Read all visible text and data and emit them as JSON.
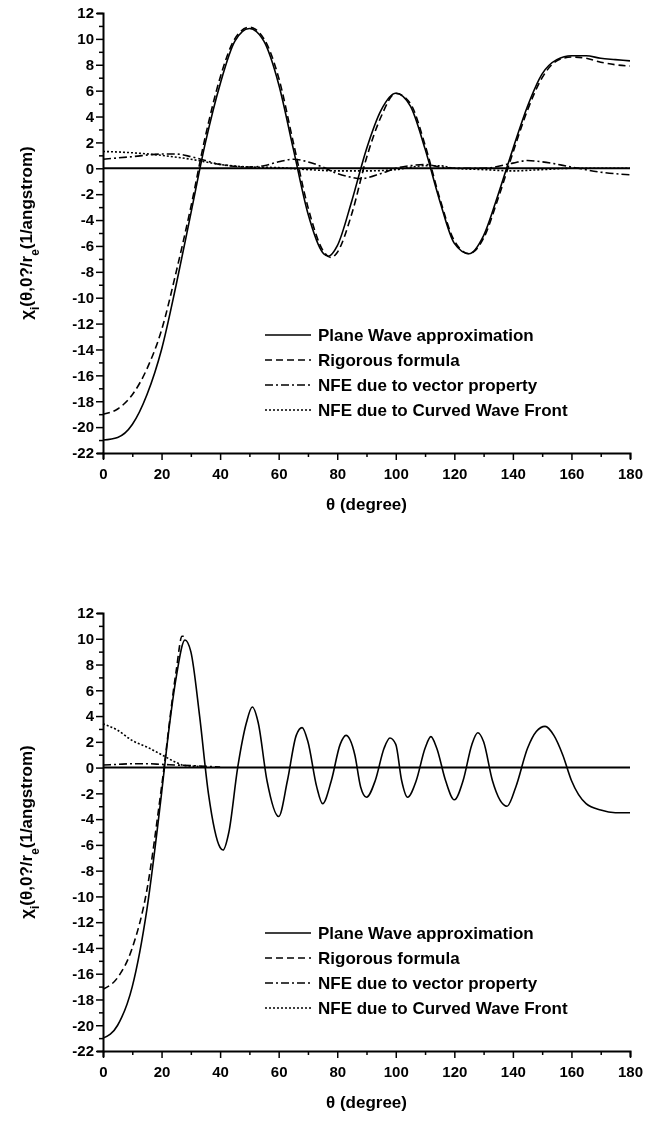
{
  "chart_data": [
    {
      "type": "line",
      "xlabel": "θ (degree)",
      "ylabel": "χ$_{i}$(θ,0?/r$_{e}$(1/angstrom)",
      "legend": "bottom right",
      "xlim": [
        0,
        180
      ],
      "ylim": [
        -22,
        12
      ],
      "xticks": [
        0,
        {
          "value": 10,
          "label": null
        },
        20,
        {
          "value": 30,
          "label": null
        },
        40,
        {
          "value": 50,
          "label": null
        },
        60,
        {
          "value": 70,
          "label": null
        },
        80,
        {
          "value": 90,
          "label": null
        },
        100,
        {
          "value": 110,
          "label": null
        },
        120,
        {
          "value": 130,
          "label": null
        },
        140,
        {
          "value": 150,
          "label": null
        },
        160,
        {
          "value": 170,
          "label": null
        },
        180
      ],
      "yticks": [
        -22,
        {
          "value": -21,
          "label": null
        },
        -20,
        {
          "value": -19,
          "label": null
        },
        -18,
        {
          "value": -17,
          "label": null
        },
        -16,
        {
          "value": -15,
          "label": null
        },
        -14,
        {
          "value": -13,
          "label": null
        },
        -12,
        {
          "value": -11,
          "label": null
        },
        -10,
        {
          "value": -9,
          "label": null
        },
        -8,
        {
          "value": -7,
          "label": null
        },
        -6,
        {
          "value": -5,
          "label": null
        },
        -4,
        {
          "value": -3,
          "label": null
        },
        -2,
        {
          "value": -1,
          "label": null
        },
        0,
        {
          "value": 1,
          "label": null
        },
        2,
        {
          "value": 3,
          "label": null
        },
        4,
        {
          "value": 5,
          "label": null
        },
        6,
        {
          "value": 7,
          "label": null
        },
        8,
        {
          "value": 9,
          "label": null
        },
        10,
        {
          "value": 11,
          "label": null
        },
        12
      ],
      "ref_lines": [
        {
          "axis": "y",
          "value": 0,
          "label": null,
          "color": "#000000",
          "line_style": "solid"
        }
      ],
      "series": [
        {
          "name": "Plane Wave approximation",
          "color": "#000000",
          "line_style": "solid",
          "x": [
            0,
            5,
            10,
            15,
            20,
            25,
            30,
            35,
            40,
            45,
            50,
            55,
            60,
            65,
            70,
            75,
            77,
            80,
            85,
            90,
            95,
            100,
            105,
            110,
            115,
            120,
            125,
            130,
            135,
            140,
            145,
            150,
            155,
            160,
            165,
            170,
            175,
            180
          ],
          "values": [
            -21,
            -20.8,
            -19.8,
            -17.5,
            -14,
            -9,
            -3.5,
            2,
            6.5,
            9.8,
            10.8,
            9.8,
            6.5,
            1.5,
            -3.5,
            -6.5,
            -6.8,
            -6,
            -2.5,
            1.5,
            4.5,
            5.8,
            4.8,
            1.5,
            -2.5,
            -5.8,
            -6.6,
            -5.2,
            -2,
            1.5,
            4.8,
            7.3,
            8.4,
            8.7,
            8.7,
            8.5,
            8.4,
            8.3
          ]
        },
        {
          "name": "Rigorous formula",
          "color": "#000000",
          "line_style": "dashed",
          "x": [
            0,
            5,
            10,
            15,
            20,
            25,
            30,
            35,
            40,
            45,
            50,
            55,
            60,
            65,
            70,
            75,
            78,
            80,
            85,
            90,
            95,
            100,
            105,
            110,
            115,
            120,
            125,
            130,
            135,
            140,
            145,
            150,
            155,
            160,
            165,
            170,
            175,
            180
          ],
          "values": [
            -19,
            -18.6,
            -17.5,
            -15.5,
            -12.5,
            -8,
            -3,
            2.5,
            7,
            10,
            10.9,
            10,
            7,
            2,
            -3,
            -6.3,
            -6.9,
            -6.5,
            -3.5,
            0.8,
            4,
            5.8,
            5,
            1.8,
            -2.3,
            -5.6,
            -6.6,
            -5.4,
            -2.3,
            1.2,
            4.5,
            7,
            8.3,
            8.6,
            8.5,
            8.2,
            8,
            7.9
          ]
        },
        {
          "name": "NFE due to vector property",
          "color": "#000000",
          "line_style": "dashdot",
          "x": [
            0,
            10,
            20,
            25,
            30,
            35,
            40,
            50,
            55,
            60,
            65,
            70,
            75,
            80,
            85,
            88,
            95,
            100,
            105,
            110,
            115,
            120,
            130,
            140,
            145,
            150,
            160,
            170,
            180
          ],
          "values": [
            0.7,
            0.9,
            1.1,
            1.1,
            0.9,
            0.6,
            0.3,
            0.1,
            0.2,
            0.5,
            0.7,
            0.5,
            0.1,
            -0.4,
            -0.7,
            -0.8,
            -0.4,
            0,
            0.2,
            0.3,
            0.1,
            0,
            0,
            0.4,
            0.6,
            0.5,
            0.1,
            -0.3,
            -0.5
          ]
        },
        {
          "name": "NFE due to Curved Wave Front",
          "color": "#000000",
          "line_style": "dotted",
          "x": [
            0,
            10,
            20,
            30,
            40,
            50,
            60,
            70,
            80,
            90,
            100,
            110,
            115,
            120,
            130,
            140,
            150,
            160,
            170,
            180
          ],
          "values": [
            1.3,
            1.2,
            1,
            0.7,
            0.3,
            0.1,
            0.05,
            -0.1,
            -0.2,
            -0.2,
            -0.1,
            0.2,
            0.2,
            0,
            -0.1,
            -0.2,
            -0.1,
            0,
            0,
            0
          ]
        }
      ]
    },
    {
      "type": "line",
      "xlabel": "θ (degree)",
      "ylabel": "χ$_{i}$(θ,0?/r$_{e}$(1/angstrom)",
      "legend": "bottom right",
      "xlim": [
        0,
        180
      ],
      "ylim": [
        -22,
        12
      ],
      "xticks": [
        0,
        {
          "value": 10,
          "label": null
        },
        20,
        {
          "value": 30,
          "label": null
        },
        40,
        {
          "value": 50,
          "label": null
        },
        60,
        {
          "value": 70,
          "label": null
        },
        80,
        {
          "value": 90,
          "label": null
        },
        100,
        {
          "value": 110,
          "label": null
        },
        120,
        {
          "value": 130,
          "label": null
        },
        140,
        {
          "value": 150,
          "label": null
        },
        160,
        {
          "value": 170,
          "label": null
        },
        180
      ],
      "yticks": [
        -22,
        {
          "value": -21,
          "label": null
        },
        -20,
        {
          "value": -19,
          "label": null
        },
        -18,
        {
          "value": -17,
          "label": null
        },
        -16,
        {
          "value": -15,
          "label": null
        },
        -14,
        {
          "value": -13,
          "label": null
        },
        -12,
        {
          "value": -11,
          "label": null
        },
        -10,
        {
          "value": -9,
          "label": null
        },
        -8,
        {
          "value": -7,
          "label": null
        },
        -6,
        {
          "value": -5,
          "label": null
        },
        -4,
        {
          "value": -3,
          "label": null
        },
        -2,
        {
          "value": -1,
          "label": null
        },
        0,
        {
          "value": 1,
          "label": null
        },
        2,
        {
          "value": 3,
          "label": null
        },
        4,
        {
          "value": 5,
          "label": null
        },
        6,
        {
          "value": 7,
          "label": null
        },
        8,
        {
          "value": 9,
          "label": null
        },
        10,
        {
          "value": 11,
          "label": null
        },
        12
      ],
      "ref_lines": [
        {
          "axis": "y",
          "value": 0,
          "label": null,
          "color": "#000000",
          "line_style": "solid"
        }
      ],
      "series": [
        {
          "name": "Plane Wave approximation",
          "color": "#000000",
          "line_style": "solid",
          "x": [
            0,
            5,
            10,
            15,
            20,
            22,
            25,
            28,
            30,
            33,
            36,
            40,
            41,
            43,
            46,
            49,
            51,
            53,
            56,
            60,
            63,
            66,
            68,
            70,
            73,
            75,
            78,
            81,
            83,
            86,
            88,
            90,
            93,
            96,
            98,
            100,
            102,
            104,
            107,
            110,
            112,
            114,
            117,
            120,
            123,
            126,
            128,
            130,
            133,
            138,
            141,
            145,
            148,
            151,
            154,
            157,
            160,
            165,
            170,
            175,
            180
          ],
          "values": [
            -21,
            -20,
            -17,
            -11,
            -2,
            2,
            7,
            9.9,
            9,
            4,
            -2,
            -6.2,
            -6.4,
            -5,
            0,
            3.5,
            4.7,
            3.5,
            -1,
            -3.8,
            -1,
            2.5,
            3.1,
            2,
            -1.5,
            -2.8,
            -1,
            1.8,
            2.5,
            1,
            -1.5,
            -2.3,
            -1,
            1.5,
            2.3,
            1.8,
            -1,
            -2.3,
            -1,
            1.5,
            2.4,
            1.5,
            -1,
            -2.5,
            -1,
            1.8,
            2.7,
            2,
            -1,
            -3,
            -1.5,
            1.5,
            2.8,
            3.2,
            2.5,
            1,
            -1,
            -2.8,
            -3.3,
            -3.5,
            -3.5
          ]
        },
        {
          "name": "Rigorous formula",
          "color": "#000000",
          "line_style": "dashed",
          "x": [
            0,
            5,
            10,
            15,
            20,
            25,
            27,
            28
          ],
          "values": [
            -17.2,
            -16.3,
            -14,
            -9.5,
            -1.5,
            7.5,
            10.2,
            10.2
          ]
        },
        {
          "name": "NFE due to vector property",
          "color": "#000000",
          "line_style": "dashdot",
          "x": [
            0,
            5,
            10,
            15,
            20,
            25,
            30,
            35,
            40
          ],
          "values": [
            0.2,
            0.25,
            0.3,
            0.3,
            0.25,
            0.2,
            0.15,
            0.1,
            0.05
          ]
        },
        {
          "name": "NFE due to Curved Wave Front",
          "color": "#000000",
          "line_style": "dotted",
          "x": [
            0,
            5,
            10,
            15,
            20,
            25,
            28,
            32,
            35
          ],
          "values": [
            3.4,
            2.9,
            2.1,
            1.6,
            1,
            0.4,
            0.15,
            0.1,
            0.05
          ]
        }
      ]
    }
  ]
}
